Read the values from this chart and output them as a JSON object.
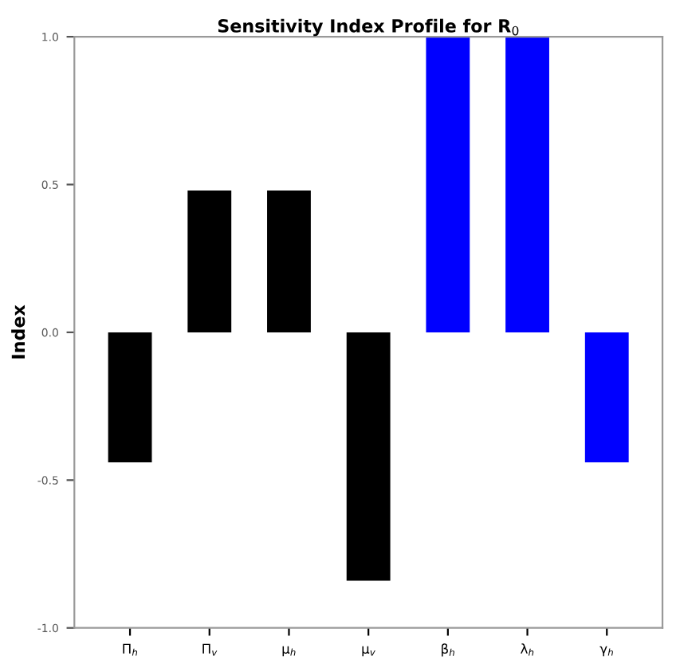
{
  "chart_data": {
    "type": "bar",
    "title": "Sensitivity Index Profile for R$_{0}$",
    "ylabel": "Index",
    "categories": [
      "Π$_{h}$",
      "Π$_{v}$",
      "μ$_{h}$",
      "μ$_{v}$",
      "β$_{h}$",
      "λ$_{h}$",
      "γ$_{h}$"
    ],
    "values": [
      -0.44,
      0.48,
      0.48,
      -0.84,
      1.0,
      1.0,
      -0.44
    ],
    "colors": [
      "#000000",
      "#000000",
      "#000000",
      "#000000",
      "#0000ff",
      "#0000ff",
      "#0000ff"
    ],
    "ylim": [
      -1.0,
      1.0
    ],
    "yticks": [
      {
        "value": -1.0,
        "label": "-1.0"
      },
      {
        "value": -0.5,
        "label": "-0.5"
      },
      {
        "value": 0.0,
        "label": "0.0"
      },
      {
        "value": 0.5,
        "label": "0.5"
      },
      {
        "value": 1.0,
        "label": "1.0"
      }
    ],
    "grid": false
  }
}
